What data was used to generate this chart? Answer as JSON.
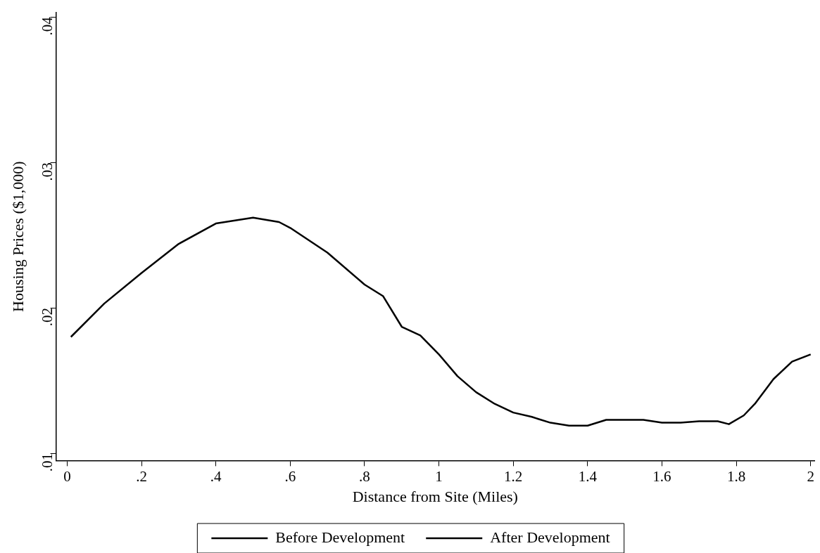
{
  "chart_data": {
    "type": "line",
    "xlabel": "Distance from Site (Miles)",
    "ylabel": "Housing Prices ($1,000)",
    "x": [
      0.01,
      0.1,
      0.2,
      0.3,
      0.4,
      0.5,
      0.57,
      0.6,
      0.7,
      0.8,
      0.85,
      0.9,
      0.95,
      1.0,
      1.05,
      1.1,
      1.15,
      1.2,
      1.25,
      1.3,
      1.35,
      1.4,
      1.45,
      1.5,
      1.55,
      1.6,
      1.65,
      1.7,
      1.75,
      1.78,
      1.82,
      1.85,
      1.9,
      1.95,
      2.0
    ],
    "series": [
      {
        "name": "Before Development",
        "color": "#000000",
        "line_style": "solid",
        "values": [
          0.018,
          0.0203,
          0.0224,
          0.0244,
          0.0258,
          0.0262,
          0.0259,
          0.0255,
          0.0238,
          0.0216,
          0.0208,
          0.0187,
          0.0181,
          0.0168,
          0.0153,
          0.0142,
          0.0134,
          0.0128,
          0.0125,
          0.0121,
          0.0119,
          0.0119,
          0.0123,
          0.0123,
          0.0123,
          0.0121,
          0.0121,
          0.0122,
          0.0122,
          0.012,
          0.0126,
          0.0134,
          0.0151,
          0.0163,
          0.0168
        ]
      },
      {
        "name": "After Development",
        "color": "#000000",
        "line_style": "dashed",
        "values": [
          null,
          null,
          null,
          null,
          null,
          null,
          null,
          null,
          null,
          null,
          null,
          null,
          null,
          null,
          null,
          null,
          null,
          null,
          null,
          null,
          null,
          null,
          null,
          null,
          null,
          null,
          null,
          null,
          null,
          null,
          null,
          null,
          null,
          null,
          null
        ]
      }
    ],
    "xlim": [
      -0.03,
      2.01
    ],
    "xticks": [
      0,
      {
        "value": 0.2,
        "label": ".2"
      },
      {
        "value": 0.4,
        "label": ".4"
      },
      {
        "value": 0.6,
        "label": ".6"
      },
      {
        "value": 0.8,
        "label": ".8"
      },
      1,
      1.2,
      1.4,
      1.6,
      1.8,
      2
    ],
    "ylim": [
      0.0095,
      0.0403
    ],
    "yticks": [
      {
        "value": 0.01,
        "label": ".01"
      },
      {
        "value": 0.02,
        "label": ".02"
      },
      {
        "value": 0.03,
        "label": ".03"
      },
      {
        "value": 0.04,
        "label": ".04"
      }
    ],
    "grid": false,
    "legend": "bottom",
    "marker": "none"
  }
}
